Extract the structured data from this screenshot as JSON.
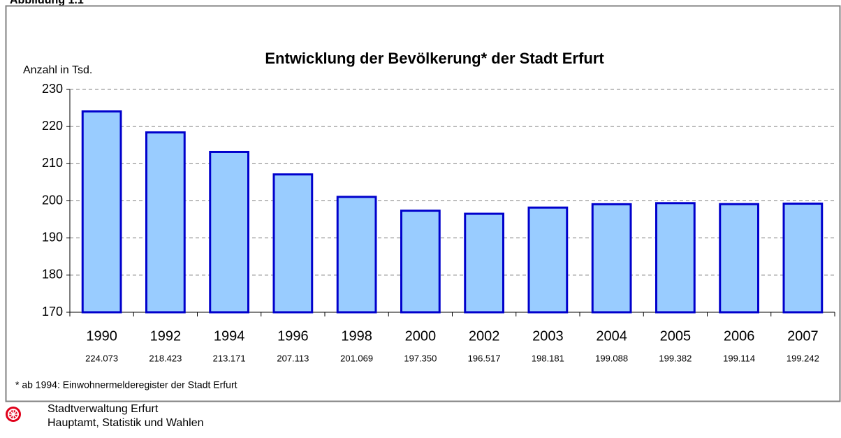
{
  "figure_label": "Abbildung 1.1",
  "chart_data": {
    "type": "bar",
    "title": "Entwicklung der Bevölkerung* der Stadt Erfurt",
    "y_label": "Anzahl in Tsd.",
    "categories": [
      "1990",
      "1992",
      "1994",
      "1996",
      "1998",
      "2000",
      "2002",
      "2003",
      "2004",
      "2005",
      "2006",
      "2007"
    ],
    "values": [
      224.073,
      218.423,
      213.171,
      207.113,
      201.069,
      197.35,
      196.517,
      198.181,
      199.088,
      199.382,
      199.114,
      199.242
    ],
    "value_labels": [
      "224.073",
      "218.423",
      "213.171",
      "207.113",
      "201.069",
      "197.350",
      "196.517",
      "198.181",
      "199.088",
      "199.382",
      "199.114",
      "199.242"
    ],
    "color": "#99ccff",
    "edge_color": "#0000cc",
    "ylim": [
      170,
      230
    ],
    "yticks": [
      170,
      180,
      190,
      200,
      210,
      220,
      230
    ],
    "grid": true,
    "footnote": "* ab 1994: Einwohnermelderegister der Stadt Erfurt"
  },
  "footer": {
    "line1": "Stadtverwaltung Erfurt",
    "line2": "Hauptamt, Statistik und Wahlen"
  }
}
